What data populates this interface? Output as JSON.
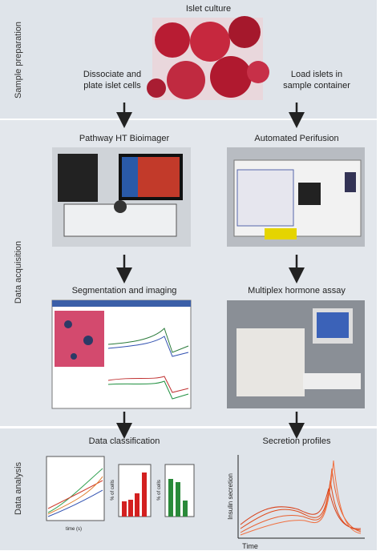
{
  "sections": [
    "Sample preparation",
    "Data acquisition",
    "Data analysis"
  ],
  "islet_culture": "Islet culture",
  "dissociate": [
    "Dissociate and",
    "plate islet cells"
  ],
  "load": [
    "Load islets in",
    "sample container"
  ],
  "acquisition": {
    "left": "Pathway HT Bioimager",
    "right": "Automated Perifusion"
  },
  "processing": {
    "left": "Segmentation and imaging",
    "right": "Multiplex hormone assay"
  },
  "analysis": {
    "left": "Data classification",
    "right": "Secretion profiles",
    "y_label": "Insulin secretion",
    "x_label": "Time",
    "bar_y_label": "% of cells",
    "line_x_label": "time (s)"
  }
}
